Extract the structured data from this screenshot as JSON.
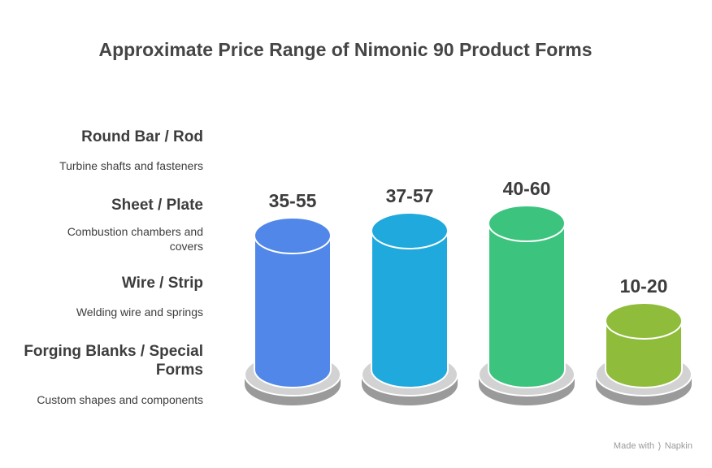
{
  "chart_data": {
    "type": "bar",
    "title": "Approximate Price Range of Nimonic 90 Product Forms",
    "categories": [
      "Round Bar / Rod",
      "Sheet / Plate",
      "Wire / Strip",
      "Forging Blanks / Special Forms"
    ],
    "descriptions": [
      "Turbine shafts and fasteners",
      "Combustion chambers and covers",
      "Welding wire and springs",
      "Custom shapes and components"
    ],
    "ranges": [
      [
        35,
        55
      ],
      [
        37,
        57
      ],
      [
        40,
        60
      ],
      [
        10,
        20
      ]
    ],
    "labels": [
      "35-55",
      "37-57",
      "40-60",
      "10-20"
    ],
    "colors": [
      "#5087e8",
      "#1fa9dc",
      "#3cc47f",
      "#8fbc3a"
    ],
    "ylim": [
      0,
      60
    ],
    "xlabel": "",
    "ylabel": ""
  },
  "footer": {
    "made_with": "Made with",
    "brand": "Napkin"
  }
}
